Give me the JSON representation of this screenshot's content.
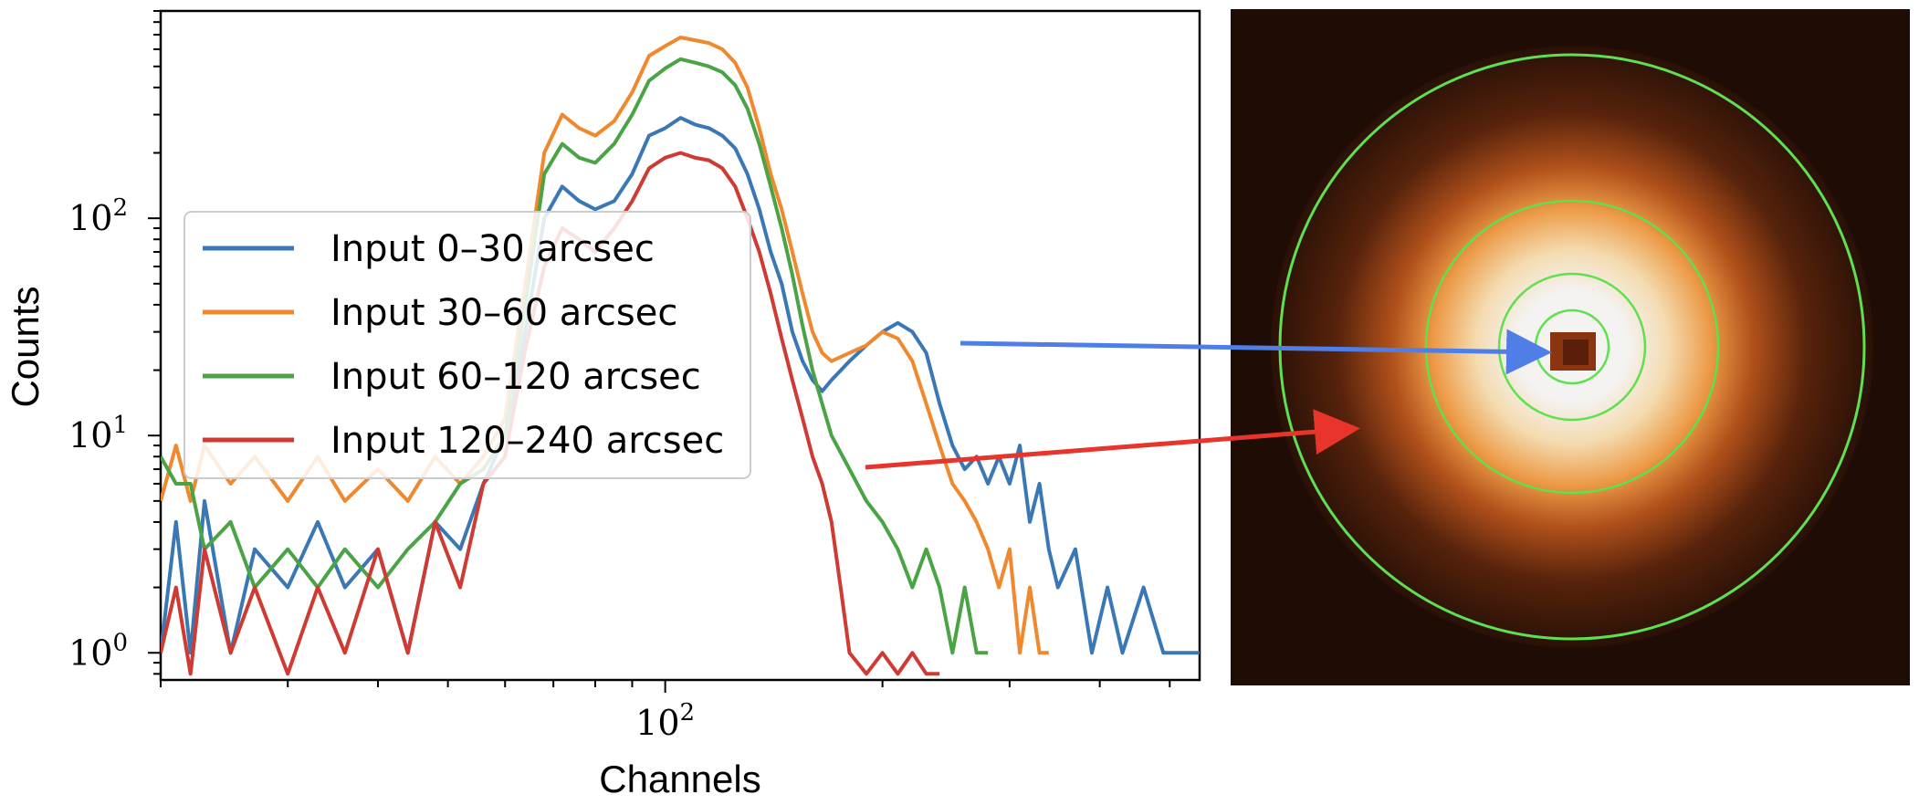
{
  "chart_data": {
    "type": "line",
    "xlabel": "Channels",
    "ylabel": "Counts",
    "x_scale": "log",
    "y_scale": "log",
    "xlim": [
      20,
      550
    ],
    "ylim": [
      0.75,
      900
    ],
    "grid": false,
    "legend_position": "center-left",
    "x_ticks": [
      {
        "base": "10",
        "exp": "2",
        "value": 100
      }
    ],
    "y_ticks": [
      {
        "base": "10",
        "exp": "0",
        "value": 1
      },
      {
        "base": "10",
        "exp": "1",
        "value": 10
      },
      {
        "base": "10",
        "exp": "2",
        "value": 100
      }
    ],
    "series": [
      {
        "name": "Input 0–30 arcsec",
        "color": "#3a78b5",
        "points": [
          [
            20,
            1
          ],
          [
            21,
            4
          ],
          [
            22,
            1
          ],
          [
            23,
            5
          ],
          [
            25,
            1
          ],
          [
            27,
            3
          ],
          [
            30,
            2
          ],
          [
            33,
            4
          ],
          [
            36,
            2
          ],
          [
            40,
            3
          ],
          [
            44,
            1
          ],
          [
            48,
            4
          ],
          [
            52,
            3
          ],
          [
            56,
            6
          ],
          [
            60,
            10
          ],
          [
            64,
            30
          ],
          [
            68,
            100
          ],
          [
            72,
            140
          ],
          [
            76,
            120
          ],
          [
            80,
            110
          ],
          [
            85,
            120
          ],
          [
            90,
            160
          ],
          [
            95,
            240
          ],
          [
            100,
            260
          ],
          [
            105,
            290
          ],
          [
            110,
            270
          ],
          [
            115,
            260
          ],
          [
            120,
            240
          ],
          [
            125,
            210
          ],
          [
            130,
            160
          ],
          [
            135,
            110
          ],
          [
            140,
            70
          ],
          [
            145,
            50
          ],
          [
            150,
            30
          ],
          [
            155,
            22
          ],
          [
            160,
            18
          ],
          [
            165,
            16
          ],
          [
            170,
            18
          ],
          [
            180,
            22
          ],
          [
            190,
            26
          ],
          [
            200,
            30
          ],
          [
            210,
            33
          ],
          [
            220,
            30
          ],
          [
            230,
            24
          ],
          [
            240,
            14
          ],
          [
            250,
            9
          ],
          [
            260,
            7
          ],
          [
            270,
            8
          ],
          [
            280,
            6
          ],
          [
            290,
            8
          ],
          [
            300,
            6
          ],
          [
            310,
            9
          ],
          [
            320,
            4
          ],
          [
            330,
            6
          ],
          [
            340,
            3
          ],
          [
            350,
            2
          ],
          [
            370,
            3
          ],
          [
            390,
            1
          ],
          [
            410,
            2
          ],
          [
            430,
            1
          ],
          [
            460,
            2
          ],
          [
            490,
            1
          ],
          [
            520,
            1
          ],
          [
            550,
            1
          ]
        ]
      },
      {
        "name": "Input 30–60 arcsec",
        "color": "#f0882e",
        "points": [
          [
            20,
            5
          ],
          [
            21,
            9
          ],
          [
            22,
            5
          ],
          [
            23,
            9
          ],
          [
            25,
            6
          ],
          [
            27,
            8
          ],
          [
            30,
            5
          ],
          [
            33,
            8
          ],
          [
            36,
            5
          ],
          [
            40,
            7
          ],
          [
            44,
            5
          ],
          [
            48,
            8
          ],
          [
            52,
            6
          ],
          [
            56,
            8
          ],
          [
            60,
            12
          ],
          [
            64,
            50
          ],
          [
            68,
            200
          ],
          [
            72,
            300
          ],
          [
            76,
            260
          ],
          [
            80,
            240
          ],
          [
            85,
            280
          ],
          [
            90,
            380
          ],
          [
            95,
            560
          ],
          [
            100,
            620
          ],
          [
            105,
            680
          ],
          [
            110,
            660
          ],
          [
            115,
            640
          ],
          [
            120,
            600
          ],
          [
            125,
            520
          ],
          [
            130,
            400
          ],
          [
            135,
            260
          ],
          [
            140,
            160
          ],
          [
            145,
            110
          ],
          [
            150,
            70
          ],
          [
            155,
            45
          ],
          [
            160,
            30
          ],
          [
            165,
            24
          ],
          [
            170,
            22
          ],
          [
            180,
            24
          ],
          [
            190,
            26
          ],
          [
            200,
            30
          ],
          [
            210,
            28
          ],
          [
            220,
            22
          ],
          [
            230,
            14
          ],
          [
            240,
            9
          ],
          [
            250,
            6
          ],
          [
            260,
            5
          ],
          [
            270,
            4
          ],
          [
            280,
            3
          ],
          [
            290,
            2
          ],
          [
            300,
            3
          ],
          [
            310,
            1
          ],
          [
            320,
            2
          ],
          [
            330,
            1
          ],
          [
            340,
            1
          ]
        ]
      },
      {
        "name": "Input 60–120 arcsec",
        "color": "#4aa344",
        "points": [
          [
            20,
            8
          ],
          [
            21,
            6
          ],
          [
            22,
            6
          ],
          [
            23,
            3
          ],
          [
            25,
            4
          ],
          [
            27,
            2
          ],
          [
            30,
            3
          ],
          [
            33,
            2
          ],
          [
            36,
            3
          ],
          [
            40,
            2
          ],
          [
            44,
            3
          ],
          [
            48,
            4
          ],
          [
            52,
            6
          ],
          [
            56,
            7
          ],
          [
            60,
            10
          ],
          [
            64,
            40
          ],
          [
            68,
            160
          ],
          [
            72,
            220
          ],
          [
            76,
            190
          ],
          [
            80,
            180
          ],
          [
            85,
            220
          ],
          [
            90,
            300
          ],
          [
            95,
            430
          ],
          [
            100,
            490
          ],
          [
            105,
            540
          ],
          [
            110,
            520
          ],
          [
            115,
            500
          ],
          [
            120,
            470
          ],
          [
            125,
            410
          ],
          [
            130,
            320
          ],
          [
            135,
            220
          ],
          [
            140,
            140
          ],
          [
            145,
            90
          ],
          [
            150,
            55
          ],
          [
            155,
            32
          ],
          [
            160,
            20
          ],
          [
            165,
            14
          ],
          [
            170,
            10
          ],
          [
            180,
            7
          ],
          [
            190,
            5
          ],
          [
            200,
            4
          ],
          [
            210,
            3
          ],
          [
            220,
            2
          ],
          [
            230,
            3
          ],
          [
            240,
            2
          ],
          [
            250,
            1
          ],
          [
            260,
            2
          ],
          [
            270,
            1
          ],
          [
            280,
            1
          ]
        ]
      },
      {
        "name": "Input 120–240 arcsec",
        "color": "#cf3a33",
        "points": [
          [
            20,
            1
          ],
          [
            21,
            2
          ],
          [
            22,
            0.8
          ],
          [
            23,
            3
          ],
          [
            25,
            1
          ],
          [
            27,
            2
          ],
          [
            30,
            0.8
          ],
          [
            33,
            2
          ],
          [
            36,
            1
          ],
          [
            40,
            3
          ],
          [
            44,
            1
          ],
          [
            48,
            4
          ],
          [
            52,
            2
          ],
          [
            56,
            6
          ],
          [
            60,
            8
          ],
          [
            64,
            25
          ],
          [
            68,
            60
          ],
          [
            72,
            90
          ],
          [
            76,
            80
          ],
          [
            80,
            70
          ],
          [
            85,
            90
          ],
          [
            90,
            120
          ],
          [
            95,
            170
          ],
          [
            100,
            190
          ],
          [
            105,
            200
          ],
          [
            110,
            190
          ],
          [
            115,
            185
          ],
          [
            120,
            170
          ],
          [
            125,
            140
          ],
          [
            130,
            100
          ],
          [
            135,
            70
          ],
          [
            140,
            45
          ],
          [
            145,
            28
          ],
          [
            150,
            18
          ],
          [
            155,
            12
          ],
          [
            160,
            8
          ],
          [
            165,
            6
          ],
          [
            170,
            4
          ],
          [
            175,
            2
          ],
          [
            180,
            1
          ],
          [
            190,
            0.8
          ],
          [
            200,
            1
          ],
          [
            210,
            0.8
          ],
          [
            220,
            1
          ],
          [
            230,
            0.8
          ],
          [
            240,
            0.8
          ]
        ]
      }
    ]
  },
  "image_panel": {
    "background": "#1e0c05",
    "ring_color": "#5fe04e",
    "arrow_blue": "#4f7fe6",
    "arrow_red": "#e8342a"
  }
}
